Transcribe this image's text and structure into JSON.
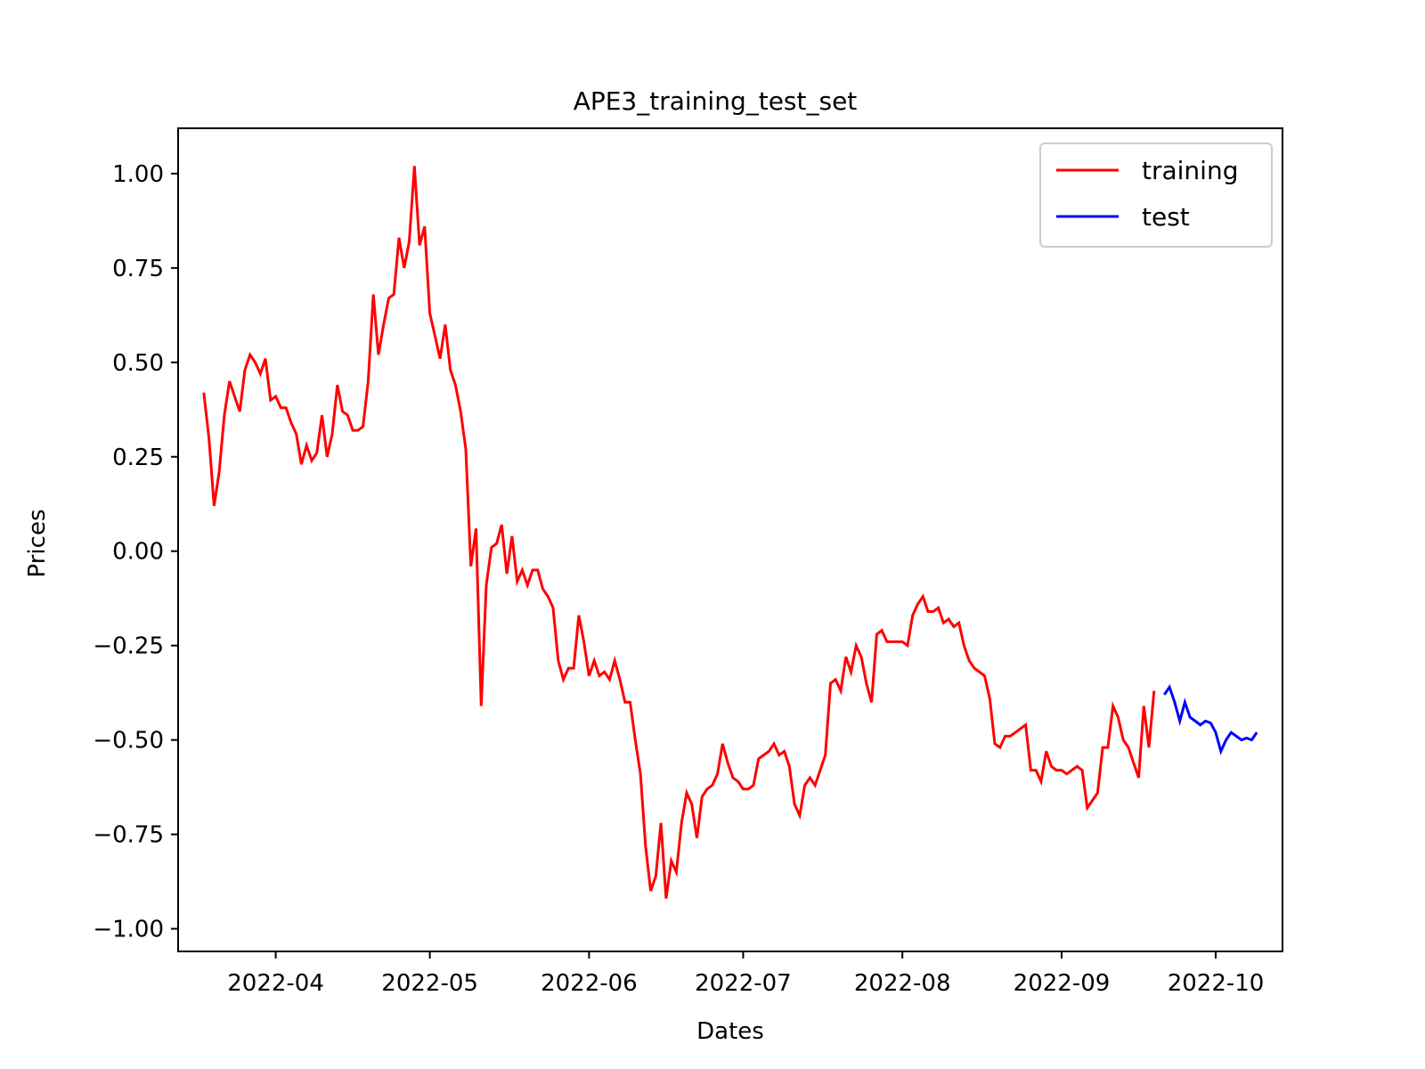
{
  "chart_data": {
    "type": "line",
    "title": "APE3_training_test_set",
    "xlabel": "Dates",
    "ylabel": "Prices",
    "xlim": [
      "2022-03-13",
      "2022-10-14"
    ],
    "ylim": [
      -1.06,
      1.12
    ],
    "x_ticks": [
      {
        "date": "2022-04-01",
        "label": "2022-04"
      },
      {
        "date": "2022-05-01",
        "label": "2022-05"
      },
      {
        "date": "2022-06-01",
        "label": "2022-06"
      },
      {
        "date": "2022-07-01",
        "label": "2022-07"
      },
      {
        "date": "2022-08-01",
        "label": "2022-08"
      },
      {
        "date": "2022-09-01",
        "label": "2022-09"
      },
      {
        "date": "2022-10-01",
        "label": "2022-10"
      }
    ],
    "y_ticks": [
      {
        "value": 1.0,
        "label": "1.00"
      },
      {
        "value": 0.75,
        "label": "0.75"
      },
      {
        "value": 0.5,
        "label": "0.50"
      },
      {
        "value": 0.25,
        "label": "0.25"
      },
      {
        "value": 0.0,
        "label": "0.00"
      },
      {
        "value": -0.25,
        "label": "−0.25"
      },
      {
        "value": -0.5,
        "label": "−0.50"
      },
      {
        "value": -0.75,
        "label": "−0.75"
      },
      {
        "value": -1.0,
        "label": "−1.00"
      }
    ],
    "grid": false,
    "legend_position": "top-right",
    "series": [
      {
        "name": "training",
        "color": "#ff0000",
        "x": [
          "2022-03-18",
          "2022-03-19",
          "2022-03-20",
          "2022-03-21",
          "2022-03-22",
          "2022-03-23",
          "2022-03-24",
          "2022-03-25",
          "2022-03-26",
          "2022-03-27",
          "2022-03-28",
          "2022-03-29",
          "2022-03-30",
          "2022-03-31",
          "2022-04-01",
          "2022-04-02",
          "2022-04-03",
          "2022-04-04",
          "2022-04-05",
          "2022-04-06",
          "2022-04-07",
          "2022-04-08",
          "2022-04-09",
          "2022-04-10",
          "2022-04-11",
          "2022-04-12",
          "2022-04-13",
          "2022-04-14",
          "2022-04-15",
          "2022-04-16",
          "2022-04-17",
          "2022-04-18",
          "2022-04-19",
          "2022-04-20",
          "2022-04-21",
          "2022-04-22",
          "2022-04-23",
          "2022-04-24",
          "2022-04-25",
          "2022-04-26",
          "2022-04-27",
          "2022-04-28",
          "2022-04-29",
          "2022-04-30",
          "2022-05-01",
          "2022-05-02",
          "2022-05-03",
          "2022-05-04",
          "2022-05-05",
          "2022-05-06",
          "2022-05-07",
          "2022-05-08",
          "2022-05-09",
          "2022-05-10",
          "2022-05-11",
          "2022-05-12",
          "2022-05-13",
          "2022-05-14",
          "2022-05-15",
          "2022-05-16",
          "2022-05-17",
          "2022-05-18",
          "2022-05-19",
          "2022-05-20",
          "2022-05-21",
          "2022-05-22",
          "2022-05-23",
          "2022-05-24",
          "2022-05-25",
          "2022-05-26",
          "2022-05-27",
          "2022-05-28",
          "2022-05-29",
          "2022-05-30",
          "2022-05-31",
          "2022-06-01",
          "2022-06-02",
          "2022-06-03",
          "2022-06-04",
          "2022-06-05",
          "2022-06-06",
          "2022-06-07",
          "2022-06-08",
          "2022-06-09",
          "2022-06-10",
          "2022-06-11",
          "2022-06-12",
          "2022-06-13",
          "2022-06-14",
          "2022-06-15",
          "2022-06-16",
          "2022-06-17",
          "2022-06-18",
          "2022-06-19",
          "2022-06-20",
          "2022-06-21",
          "2022-06-22",
          "2022-06-23",
          "2022-06-24",
          "2022-06-25",
          "2022-06-26",
          "2022-06-27",
          "2022-06-28",
          "2022-06-29",
          "2022-06-30",
          "2022-07-01",
          "2022-07-02",
          "2022-07-03",
          "2022-07-04",
          "2022-07-05",
          "2022-07-06",
          "2022-07-07",
          "2022-07-08",
          "2022-07-09",
          "2022-07-10",
          "2022-07-11",
          "2022-07-12",
          "2022-07-13",
          "2022-07-14",
          "2022-07-15",
          "2022-07-16",
          "2022-07-17",
          "2022-07-18",
          "2022-07-19",
          "2022-07-20",
          "2022-07-21",
          "2022-07-22",
          "2022-07-23",
          "2022-07-24",
          "2022-07-25",
          "2022-07-26",
          "2022-07-27",
          "2022-07-28",
          "2022-07-29",
          "2022-07-30",
          "2022-07-31",
          "2022-08-01",
          "2022-08-02",
          "2022-08-03",
          "2022-08-04",
          "2022-08-05",
          "2022-08-06",
          "2022-08-07",
          "2022-08-08",
          "2022-08-09",
          "2022-08-10",
          "2022-08-11",
          "2022-08-12",
          "2022-08-13",
          "2022-08-14",
          "2022-08-15",
          "2022-08-16",
          "2022-08-17",
          "2022-08-18",
          "2022-08-19",
          "2022-08-20",
          "2022-08-21",
          "2022-08-22",
          "2022-08-23",
          "2022-08-24",
          "2022-08-25",
          "2022-08-26",
          "2022-08-27",
          "2022-08-28",
          "2022-08-29",
          "2022-08-30",
          "2022-08-31",
          "2022-09-01",
          "2022-09-02",
          "2022-09-03",
          "2022-09-04",
          "2022-09-05",
          "2022-09-06",
          "2022-09-07",
          "2022-09-08",
          "2022-09-09",
          "2022-09-10",
          "2022-09-11",
          "2022-09-12",
          "2022-09-13",
          "2022-09-14",
          "2022-09-15",
          "2022-09-16",
          "2022-09-17",
          "2022-09-18",
          "2022-09-19"
        ],
        "y": [
          0.42,
          0.3,
          0.12,
          0.21,
          0.36,
          0.45,
          0.41,
          0.37,
          0.48,
          0.52,
          0.5,
          0.47,
          0.51,
          0.4,
          0.41,
          0.38,
          0.38,
          0.34,
          0.31,
          0.23,
          0.28,
          0.24,
          0.26,
          0.36,
          0.25,
          0.31,
          0.44,
          0.37,
          0.36,
          0.32,
          0.32,
          0.33,
          0.45,
          0.68,
          0.52,
          0.6,
          0.67,
          0.68,
          0.83,
          0.75,
          0.82,
          1.02,
          0.81,
          0.86,
          0.63,
          0.57,
          0.51,
          0.6,
          0.48,
          0.44,
          0.37,
          0.27,
          -0.04,
          0.06,
          -0.41,
          -0.09,
          0.01,
          0.02,
          0.07,
          -0.06,
          0.04,
          -0.08,
          -0.05,
          -0.09,
          -0.05,
          -0.05,
          -0.1,
          -0.12,
          -0.15,
          -0.29,
          -0.34,
          -0.31,
          -0.31,
          -0.17,
          -0.24,
          -0.33,
          -0.29,
          -0.33,
          -0.32,
          -0.34,
          -0.29,
          -0.34,
          -0.4,
          -0.4,
          -0.5,
          -0.59,
          -0.78,
          -0.9,
          -0.86,
          -0.72,
          -0.92,
          -0.82,
          -0.85,
          -0.72,
          -0.64,
          -0.67,
          -0.76,
          -0.65,
          -0.63,
          -0.62,
          -0.59,
          -0.51,
          -0.56,
          -0.6,
          -0.61,
          -0.63,
          -0.63,
          -0.62,
          -0.55,
          -0.54,
          -0.53,
          -0.51,
          -0.54,
          -0.53,
          -0.57,
          -0.67,
          -0.7,
          -0.62,
          -0.6,
          -0.62,
          -0.58,
          -0.54,
          -0.35,
          -0.34,
          -0.37,
          -0.28,
          -0.32,
          -0.25,
          -0.28,
          -0.35,
          -0.4,
          -0.22,
          -0.21,
          -0.24,
          -0.24,
          -0.24,
          -0.24,
          -0.25,
          -0.17,
          -0.14,
          -0.12,
          -0.16,
          -0.16,
          -0.15,
          -0.19,
          -0.18,
          -0.2,
          -0.19,
          -0.25,
          -0.29,
          -0.31,
          -0.32,
          -0.33,
          -0.39,
          -0.51,
          -0.52,
          -0.49,
          -0.49,
          -0.48,
          -0.47,
          -0.46,
          -0.58,
          -0.58,
          -0.61,
          -0.53,
          -0.57,
          -0.58,
          -0.58,
          -0.59,
          -0.58,
          -0.57,
          -0.58,
          -0.68,
          -0.66,
          -0.64,
          -0.52,
          -0.52,
          -0.41,
          -0.44,
          -0.5,
          -0.52,
          -0.56,
          -0.6,
          -0.41,
          -0.52,
          -0.37
        ]
      },
      {
        "name": "test",
        "color": "#0000ff",
        "x": [
          "2022-09-21",
          "2022-09-22",
          "2022-09-23",
          "2022-09-24",
          "2022-09-25",
          "2022-09-26",
          "2022-09-27",
          "2022-09-28",
          "2022-09-29",
          "2022-09-30",
          "2022-10-01",
          "2022-10-02",
          "2022-10-03",
          "2022-10-04",
          "2022-10-05",
          "2022-10-06",
          "2022-10-07",
          "2022-10-08",
          "2022-10-09"
        ],
        "y": [
          -0.38,
          -0.36,
          -0.4,
          -0.45,
          -0.4,
          -0.44,
          -0.45,
          -0.46,
          -0.45,
          -0.455,
          -0.48,
          -0.53,
          -0.5,
          -0.48,
          -0.49,
          -0.5,
          -0.495,
          -0.5,
          -0.48
        ]
      }
    ]
  }
}
